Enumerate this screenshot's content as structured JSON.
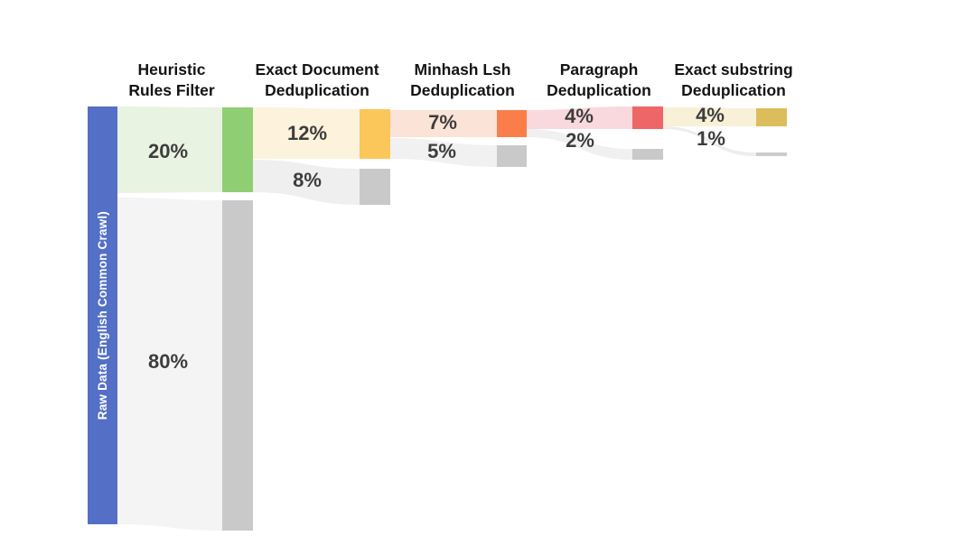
{
  "chart_data": {
    "type": "sankey",
    "title": "",
    "orientation": "horizontal",
    "unit": "percent of raw data",
    "source": {
      "label": "Raw Data (English Common Crawl)",
      "value": 100,
      "node_color": "#5470c6",
      "text_color": "#ffffff"
    },
    "stages": [
      {
        "id": "heuristic-rules-filter",
        "header_line1": "Heuristic",
        "header_line2": "Rules Filter",
        "kept": {
          "label": "20%",
          "value": 20,
          "node_color": "#90ce73",
          "flow_color": "#e9f3e2"
        },
        "removed": {
          "label": "80%",
          "value": 80,
          "node_color": "#c9c9c9",
          "flow_color": "#f4f4f4"
        }
      },
      {
        "id": "exact-document-deduplication",
        "header_line1": "Exact Document",
        "header_line2": "Deduplication",
        "kept": {
          "label": "12%",
          "value": 12,
          "node_color": "#fbc75a",
          "flow_color": "#fdf2dc"
        },
        "removed": {
          "label": "8%",
          "value": 8,
          "node_color": "#c9c9c9",
          "flow_color": "#efefef"
        }
      },
      {
        "id": "minhash-lsh-deduplication",
        "header_line1": "Minhash Lsh",
        "header_line2": "Deduplication",
        "kept": {
          "label": "7%",
          "value": 7,
          "node_color": "#fb7e4a",
          "flow_color": "#fce3d7"
        },
        "removed": {
          "label": "5%",
          "value": 5,
          "node_color": "#c9c9c9",
          "flow_color": "#f1f1f1"
        }
      },
      {
        "id": "paragraph-deduplication",
        "header_line1": "Paragraph",
        "header_line2": "Deduplication",
        "kept": {
          "label": "4%",
          "value": 4,
          "node_color": "#ee6668",
          "flow_color": "#f9d9de"
        },
        "removed": {
          "label": "2%",
          "value": 2,
          "node_color": "#c9c9c9",
          "flow_color": "#f0f0f0"
        }
      },
      {
        "id": "exact-substring-deduplication",
        "header_line1": "Exact substring",
        "header_line2": "Deduplication",
        "kept": {
          "label": "4%",
          "value": 4,
          "node_color": "#dcbd5c",
          "flow_color": "#f8f0d7"
        },
        "removed": {
          "label": "1%",
          "value": 1,
          "node_color": "#cccccc",
          "flow_color": "#ededed"
        }
      }
    ]
  }
}
